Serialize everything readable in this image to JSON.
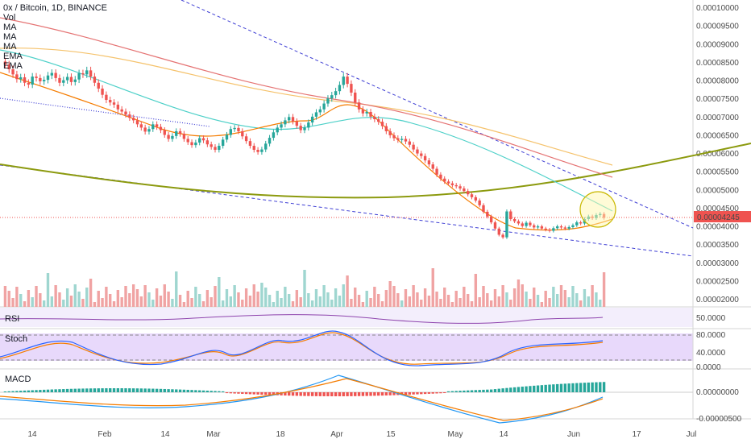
{
  "header": {
    "title": "0x / Bitcoin, 1D, BINANCE",
    "indicators": [
      "Vol",
      "MA",
      "MA",
      "MA",
      "EMA",
      "EMA"
    ]
  },
  "price_axis": {
    "ticks": [
      "0.00010000",
      "0.00009500",
      "0.00009000",
      "0.00008500",
      "0.00008000",
      "0.00007500",
      "0.00007000",
      "0.00006500",
      "0.00006000",
      "0.00005500",
      "0.00005000",
      "0.00004500",
      "0.00004000",
      "0.00003500",
      "0.00003000",
      "0.00002500",
      "0.00002000"
    ],
    "current_price": "0.00004245",
    "current_price_color": "#ef5350"
  },
  "time_axis": {
    "labels": [
      "14",
      "Feb",
      "14",
      "Mar",
      "18",
      "Apr",
      "15",
      "May",
      "14",
      "Jun",
      "17",
      "Jul"
    ]
  },
  "panes": {
    "rsi": {
      "title": "RSI",
      "value": "50.0000"
    },
    "stoch": {
      "title": "Stoch",
      "levels": [
        "80.0000",
        "40.0000",
        "0.0000"
      ]
    },
    "macd": {
      "title": "MACD",
      "levels": [
        "0.00000000",
        "-0.00000500"
      ]
    }
  },
  "colors": {
    "up": "#26a69a",
    "down": "#ef5350",
    "ma_orange": "#f57c00",
    "ma_cyan": "#4dd0c8",
    "ma_red": "#e57373",
    "ema_yellow": "#f5c26b",
    "curve_olive": "#8c9a0e",
    "trend_blue": "#3f3fd4"
  },
  "chart_data": {
    "type": "candlestick",
    "title": "0x / Bitcoin, 1D, BINANCE",
    "ylim": [
      2e-05,
      0.0001
    ],
    "close": [
      8.45e-05,
      8.32e-05,
      8.18e-05,
      8.05e-05,
      8.1e-05,
      7.95e-05,
      7.9e-05,
      8.12e-05,
      8.08e-05,
      7.99e-05,
      8.03e-05,
      8.15e-05,
      8.22e-05,
      8.08e-05,
      7.95e-05,
      8.02e-05,
      8.11e-05,
      7.97e-05,
      8.04e-05,
      8.21e-05,
      8.18e-05,
      8.29e-05,
      8.12e-05,
      7.95e-05,
      7.79e-05,
      7.62e-05,
      7.48e-05,
      7.41e-05,
      7.35e-05,
      7.22e-05,
      7.16e-05,
      7.08e-05,
      6.99e-05,
      6.92e-05,
      6.81e-05,
      6.72e-05,
      6.61e-05,
      6.68e-05,
      6.81e-05,
      6.74e-05,
      6.65e-05,
      6.52e-05,
      6.41e-05,
      6.49e-05,
      6.62e-05,
      6.55e-05,
      6.41e-05,
      6.32e-05,
      6.24e-05,
      6.31e-05,
      6.43e-05,
      6.37e-05,
      6.26e-05,
      6.19e-05,
      6.11e-05,
      6.22e-05,
      6.39e-05,
      6.52e-05,
      6.68e-05,
      6.71e-05,
      6.62e-05,
      6.48e-05,
      6.35e-05,
      6.22e-05,
      6.11e-05,
      6.05e-05,
      6.12e-05,
      6.28e-05,
      6.44e-05,
      6.59e-05,
      6.72e-05,
      6.81e-05,
      6.92e-05,
      7.01e-05,
      6.89e-05,
      6.77e-05,
      6.65e-05,
      6.72e-05,
      6.86e-05,
      7.02e-05,
      7.14e-05,
      7.22e-05,
      7.38e-05,
      7.52e-05,
      7.61e-05,
      7.72e-05,
      7.89e-05,
      8.12e-05,
      7.92e-05,
      7.68e-05,
      7.41e-05,
      7.22e-05,
      7.11e-05,
      7.15e-05,
      7.02e-05,
      6.95e-05,
      6.88e-05,
      6.76e-05,
      6.62e-05,
      6.51e-05,
      6.43e-05,
      6.38e-05,
      6.41e-05,
      6.34e-05,
      6.25e-05,
      6.12e-05,
      6.01e-05,
      5.94e-05,
      5.82e-05,
      5.71e-05,
      5.59e-05,
      5.43e-05,
      5.32e-05,
      5.24e-05,
      5.19e-05,
      5.14e-05,
      5.11e-05,
      5.05e-05,
      4.98e-05,
      4.89e-05,
      4.81e-05,
      4.72e-05,
      4.59e-05,
      4.41e-05,
      4.28e-05,
      4.12e-05,
      3.95e-05,
      3.78e-05,
      3.71e-05,
      4.42e-05,
      4.21e-05,
      4.15e-05,
      4.09e-05,
      4.02e-05,
      4.11e-05,
      4.04e-05,
      3.98e-05,
      4.01e-05,
      3.95e-05,
      3.92e-05,
      3.89e-05,
      3.96e-05,
      4.01e-05,
      3.98e-05,
      3.95e-05,
      3.99e-05,
      4.04e-05,
      4.12e-05,
      4.09e-05,
      4.21e-05,
      4.28e-05,
      4.24e-05,
      4.32e-05,
      4.35e-05,
      4.245e-05
    ],
    "volume_peaks": "visible volume bars below price",
    "rsi_level": 50,
    "stoch_levels": [
      80,
      40,
      0
    ]
  }
}
